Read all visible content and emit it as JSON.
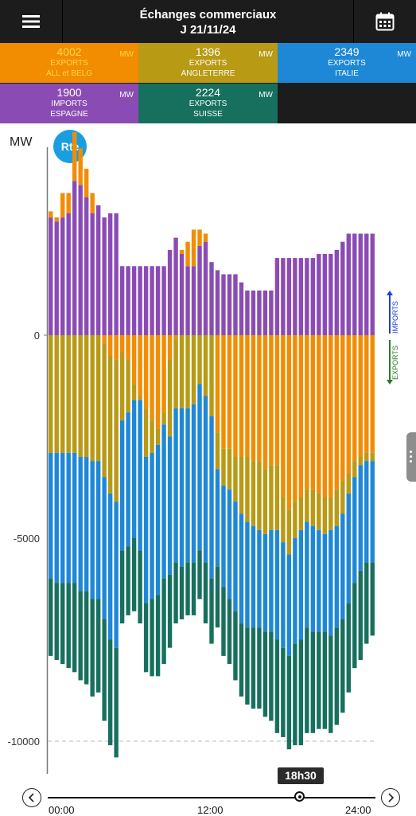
{
  "header": {
    "title_line1": "Échanges commerciaux",
    "title_line2": "J 21/11/24"
  },
  "tiles": [
    {
      "value": "4002",
      "label1": "EXPORTS",
      "label2": "ALL et BELG",
      "unit": "MW",
      "color": "#f28c00",
      "text_color": "#ffd84a"
    },
    {
      "value": "1396",
      "label1": "EXPORTS",
      "label2": "ANGLETERRE",
      "unit": "MW",
      "color": "#b89a14",
      "text_color": "#ffffff"
    },
    {
      "value": "2349",
      "label1": "EXPORTS",
      "label2": "ITALIE",
      "unit": "MW",
      "color": "#1e88d6",
      "text_color": "#ffffff"
    },
    {
      "value": "1900",
      "label1": "IMPORTS",
      "label2": "ESPAGNE",
      "unit": "MW",
      "color": "#8a4cb4",
      "text_color": "#ffffff"
    },
    {
      "value": "2224",
      "label1": "EXPORTS",
      "label2": "SUISSE",
      "unit": "MW",
      "color": "#17705e",
      "text_color": "#ffffff"
    }
  ],
  "chart_data": {
    "type": "bar",
    "stacked": true,
    "ylabel": "MW",
    "logo": "Rte",
    "yticks": [
      0,
      -5000,
      -10000
    ],
    "ylim": [
      -10600,
      4000
    ],
    "x_start": "00:00",
    "x_end": "24:00",
    "x_step_minutes": 30,
    "xticks": [
      "00:00",
      "12:00",
      "24:00"
    ],
    "legend_right": [
      "IMPORTS",
      "EXPORTS"
    ],
    "cursor": "18h30",
    "grid_dashed_at": -10000,
    "series": [
      {
        "name": "ESPAGNE",
        "color": "#8a4cb4",
        "values": [
          2900,
          2800,
          2900,
          3000,
          3800,
          3700,
          3400,
          3000,
          3200,
          2900,
          3000,
          3000,
          1700,
          1700,
          1700,
          1700,
          1700,
          1700,
          1700,
          1700,
          2100,
          2400,
          2000,
          1700,
          1700,
          2200,
          2300,
          1800,
          1600,
          1500,
          1500,
          1500,
          1300,
          1100,
          1100,
          1100,
          1100,
          1100,
          1900,
          1900,
          1900,
          1900,
          1900,
          1900,
          1900,
          2000,
          2000,
          2000,
          2100,
          2300,
          2500,
          2500,
          2500,
          2500,
          2500
        ]
      },
      {
        "name": "ALL et BELG",
        "color": "#f28c00",
        "values": [
          150,
          100,
          600,
          500,
          1200,
          900,
          700,
          500,
          0,
          -200,
          -500,
          -600,
          -400,
          -600,
          -1200,
          -1500,
          -1800,
          -2100,
          -2300,
          -1900,
          -600,
          -100,
          100,
          600,
          900,
          400,
          200,
          0,
          -2400,
          -2800,
          -2800,
          -3000,
          -3000,
          -3000,
          -3100,
          -3100,
          -3300,
          -3200,
          -3200,
          -4000,
          -4300,
          -4100,
          -4000,
          -3800,
          -3800,
          -3900,
          -4000,
          -4000,
          -3800,
          -3600,
          -3400,
          -3100,
          -3000,
          -2900,
          -2900
        ]
      },
      {
        "name": "ANGLETERRE",
        "color": "#b89a14",
        "values": [
          -2900,
          -2900,
          -2900,
          -2900,
          -2900,
          -3000,
          -3000,
          -3100,
          -3100,
          -3300,
          -3400,
          -3500,
          -1700,
          -1300,
          -400,
          -100,
          -1200,
          -800,
          -400,
          -300,
          -1900,
          -1700,
          -1800,
          -1800,
          -1700,
          -1200,
          -1500,
          -2000,
          -900,
          -900,
          -1000,
          -1100,
          -1400,
          -1600,
          -1600,
          -1700,
          -1600,
          -1600,
          -1600,
          -1100,
          -1100,
          -900,
          -800,
          -800,
          -900,
          -900,
          -900,
          -800,
          -900,
          -800,
          -500,
          -400,
          -200,
          -200,
          -200
        ]
      },
      {
        "name": "ITALIE",
        "color": "#1e88d6",
        "values": [
          -3100,
          -3200,
          -3200,
          -3200,
          -3200,
          -3300,
          -3300,
          -3400,
          -3400,
          -3500,
          -3600,
          -3600,
          -3200,
          -3300,
          -3400,
          -3700,
          -3600,
          -3600,
          -3700,
          -3800,
          -3400,
          -3800,
          -3900,
          -3800,
          -3900,
          -4100,
          -4100,
          -4000,
          -2400,
          -2500,
          -2700,
          -2700,
          -2700,
          -2600,
          -2500,
          -2400,
          -2400,
          -2500,
          -2700,
          -2600,
          -2500,
          -2600,
          -2700,
          -2600,
          -2600,
          -2500,
          -2400,
          -2600,
          -2500,
          -2600,
          -2700,
          -2600,
          -2600,
          -2500,
          -2500
        ]
      },
      {
        "name": "SUISSE",
        "color": "#17705e",
        "values": [
          -1900,
          -1900,
          -2000,
          -2100,
          -2200,
          -2200,
          -2300,
          -2400,
          -2300,
          -2500,
          -2600,
          -2700,
          -1800,
          -1700,
          -1800,
          -1800,
          -1700,
          -1900,
          -2000,
          -2100,
          -1800,
          -1500,
          -1300,
          -1300,
          -1300,
          -1200,
          -1500,
          -1600,
          -1500,
          -1700,
          -1600,
          -1700,
          -1800,
          -1900,
          -2000,
          -2000,
          -2100,
          -2200,
          -2300,
          -2200,
          -2300,
          -2500,
          -2600,
          -2600,
          -2500,
          -2400,
          -2400,
          -2400,
          -2400,
          -2300,
          -2200,
          -2100,
          -2200,
          -2000,
          -1800
        ]
      }
    ]
  },
  "icons": {
    "menu": "hamburger-icon",
    "calendar": "calendar-icon",
    "prev": "chevron-left-icon",
    "next": "chevron-right-icon"
  }
}
